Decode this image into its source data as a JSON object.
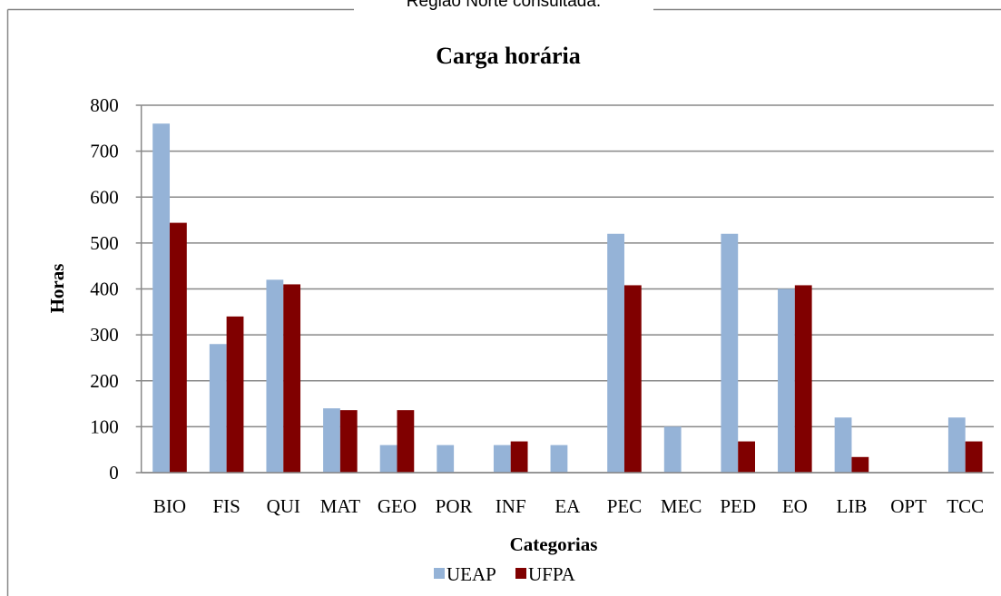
{
  "caption": "Região Norte consultada.",
  "chart_data": {
    "type": "bar",
    "title": "Carga horária",
    "x_label": "Categorias",
    "y_label": "Horas",
    "categories": [
      "BIO",
      "FIS",
      "QUI",
      "MAT",
      "GEO",
      "POR",
      "INF",
      "EA",
      "PEC",
      "MEC",
      "PED",
      "EO",
      "LIB",
      "OPT",
      "TCC"
    ],
    "series": [
      {
        "name": "UEAP",
        "color": "#95b3d7",
        "values": [
          760,
          280,
          420,
          140,
          60,
          60,
          60,
          60,
          520,
          100,
          520,
          400,
          120,
          0,
          120
        ]
      },
      {
        "name": "UFPA",
        "color": "#800000",
        "values": [
          544,
          340,
          410,
          136,
          136,
          0,
          68,
          0,
          408,
          0,
          68,
          408,
          34,
          0,
          68
        ]
      }
    ],
    "ylim": [
      0,
      800
    ],
    "yticks": [
      0,
      100,
      200,
      300,
      400,
      500,
      600,
      700,
      800
    ],
    "grid": true,
    "legend": "bottom"
  }
}
